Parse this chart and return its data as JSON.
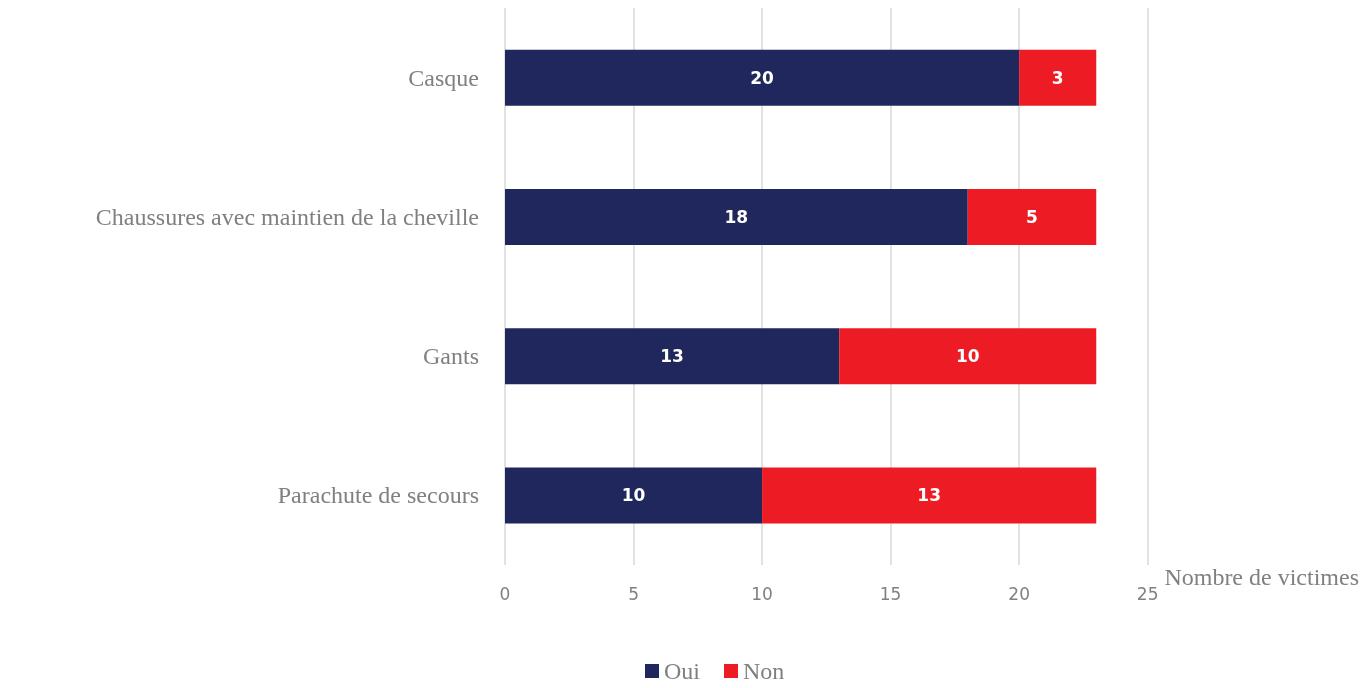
{
  "chart_data": {
    "type": "bar",
    "orientation": "horizontal",
    "stacked": true,
    "xlabel": "Nombre de victimes",
    "categories": [
      "Casque",
      "Chaussures avec maintien de la cheville",
      "Gants",
      "Parachute de secours"
    ],
    "series": [
      {
        "name": "Oui",
        "color": "#1f275c",
        "values": [
          20,
          18,
          13,
          10
        ]
      },
      {
        "name": "Non",
        "color": "#ed1c24",
        "values": [
          3,
          5,
          10,
          13
        ]
      }
    ],
    "xlim": [
      0,
      25
    ],
    "xticks": [
      0,
      5,
      10,
      15,
      20,
      25
    ],
    "grid": "x",
    "legend": "bottom",
    "data_labels": true
  }
}
